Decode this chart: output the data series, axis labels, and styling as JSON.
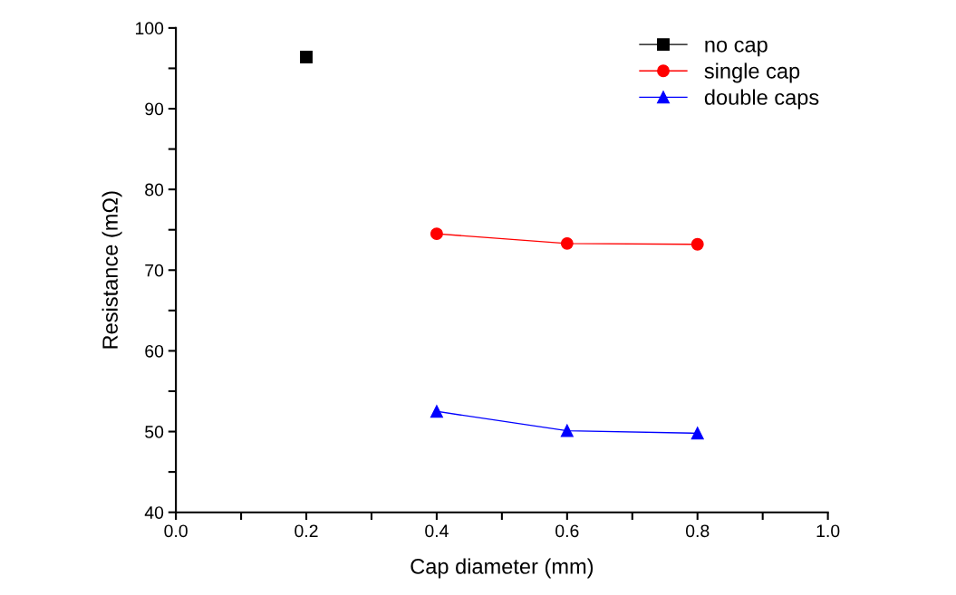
{
  "chart_data": {
    "type": "line",
    "xlabel": "Cap diameter (mm)",
    "ylabel": "Resistance (mΩ)",
    "xlim": [
      0,
      1
    ],
    "ylim": [
      40,
      100
    ],
    "xticks": [
      {
        "value": 0,
        "label": "0.0"
      },
      {
        "value": 0.1,
        "label": null
      },
      {
        "value": 0.2,
        "label": "0.2"
      },
      {
        "value": 0.3,
        "label": null
      },
      {
        "value": 0.4,
        "label": "0.4"
      },
      {
        "value": 0.5,
        "label": null
      },
      {
        "value": 0.6,
        "label": "0.6"
      },
      {
        "value": 0.7,
        "label": null
      },
      {
        "value": 0.8,
        "label": "0.8"
      },
      {
        "value": 0.9,
        "label": null
      },
      {
        "value": 1,
        "label": "1.0"
      }
    ],
    "yticks": [
      40,
      {
        "value": 45,
        "label": null
      },
      50,
      {
        "value": 55,
        "label": null
      },
      60,
      {
        "value": 65,
        "label": null
      },
      70,
      {
        "value": 75,
        "label": null
      },
      80,
      {
        "value": 85,
        "label": null
      },
      90,
      {
        "value": 95,
        "label": null
      },
      100
    ],
    "legend": "top right",
    "grid": false,
    "series": [
      {
        "name": "no cap",
        "color": "#000000",
        "marker": "square",
        "x": [
          0.2
        ],
        "values": [
          96.4
        ]
      },
      {
        "name": "single cap",
        "color": "#ff0000",
        "marker": "circle",
        "x": [
          0.4,
          0.6,
          0.8
        ],
        "values": [
          74.5,
          73.3,
          73.2
        ]
      },
      {
        "name": "double caps",
        "color": "#0000ff",
        "marker": "triangle",
        "x": [
          0.4,
          0.6,
          0.8
        ],
        "values": [
          52.5,
          50.1,
          49.8
        ]
      }
    ]
  }
}
